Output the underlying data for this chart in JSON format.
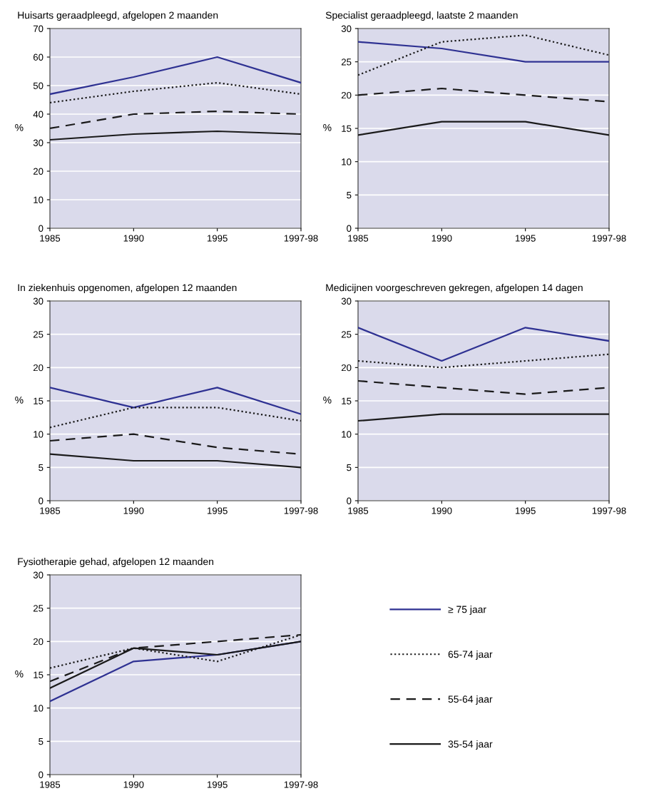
{
  "chart_data": [
    {
      "type": "line",
      "title": "Huisarts geraadpleegd, afgelopen 2 maanden",
      "ylabel": "%",
      "categories": [
        "1985",
        "1990",
        "1995",
        "1997-98"
      ],
      "ylim": [
        0,
        70
      ],
      "yticks": [
        0,
        10,
        20,
        30,
        40,
        50,
        60,
        70
      ],
      "grid": "y",
      "legend": false,
      "series": [
        {
          "color": "#2e3192",
          "line_style": "solid",
          "values": [
            47,
            53,
            60,
            51
          ]
        },
        {
          "color": "#1a1a1a",
          "line_style": "dotted",
          "values": [
            44,
            48,
            51,
            47
          ]
        },
        {
          "color": "#1a1a1a",
          "line_style": "dashed",
          "values": [
            35,
            40,
            41,
            40
          ]
        },
        {
          "color": "#1a1a1a",
          "line_style": "solid",
          "values": [
            31,
            33,
            34,
            33
          ]
        }
      ]
    },
    {
      "type": "line",
      "title": "Specialist geraadpleegd, laatste 2 maanden",
      "ylabel": "%",
      "categories": [
        "1985",
        "1990",
        "1995",
        "1997-98"
      ],
      "ylim": [
        0,
        30
      ],
      "yticks": [
        0,
        5,
        10,
        15,
        20,
        25,
        30
      ],
      "grid": "y",
      "legend": false,
      "series": [
        {
          "color": "#2e3192",
          "line_style": "solid",
          "values": [
            28,
            27,
            25,
            25
          ]
        },
        {
          "color": "#1a1a1a",
          "line_style": "dotted",
          "values": [
            23,
            28,
            29,
            26
          ]
        },
        {
          "color": "#1a1a1a",
          "line_style": "dashed",
          "values": [
            20,
            21,
            20,
            19
          ]
        },
        {
          "color": "#1a1a1a",
          "line_style": "solid",
          "values": [
            14,
            16,
            16,
            14
          ]
        }
      ]
    },
    {
      "type": "line",
      "title": "In ziekenhuis opgenomen, afgelopen 12 maanden",
      "ylabel": "%",
      "categories": [
        "1985",
        "1990",
        "1995",
        "1997-98"
      ],
      "ylim": [
        0,
        30
      ],
      "yticks": [
        0,
        5,
        10,
        15,
        20,
        25,
        30
      ],
      "grid": "y",
      "legend": false,
      "series": [
        {
          "color": "#2e3192",
          "line_style": "solid",
          "values": [
            17,
            14,
            17,
            13
          ]
        },
        {
          "color": "#1a1a1a",
          "line_style": "dotted",
          "values": [
            11,
            14,
            14,
            12
          ]
        },
        {
          "color": "#1a1a1a",
          "line_style": "dashed",
          "values": [
            9,
            10,
            8,
            7
          ]
        },
        {
          "color": "#1a1a1a",
          "line_style": "solid",
          "values": [
            7,
            6,
            6,
            5
          ]
        }
      ]
    },
    {
      "type": "line",
      "title": "Medicijnen voorgeschreven gekregen, afgelopen 14 dagen",
      "ylabel": "%",
      "categories": [
        "1985",
        "1990",
        "1995",
        "1997-98"
      ],
      "ylim": [
        0,
        30
      ],
      "yticks": [
        0,
        5,
        10,
        15,
        20,
        25,
        30
      ],
      "grid": "y",
      "legend": false,
      "series": [
        {
          "color": "#2e3192",
          "line_style": "solid",
          "values": [
            26,
            21,
            26,
            24
          ]
        },
        {
          "color": "#1a1a1a",
          "line_style": "dotted",
          "values": [
            21,
            20,
            21,
            22
          ]
        },
        {
          "color": "#1a1a1a",
          "line_style": "dashed",
          "values": [
            18,
            17,
            16,
            17
          ]
        },
        {
          "color": "#1a1a1a",
          "line_style": "solid",
          "values": [
            12,
            13,
            13,
            13
          ]
        }
      ]
    },
    {
      "type": "line",
      "title": "Fysiotherapie gehad, afgelopen 12 maanden",
      "ylabel": "%",
      "categories": [
        "1985",
        "1990",
        "1995",
        "1997-98"
      ],
      "ylim": [
        0,
        30
      ],
      "yticks": [
        0,
        5,
        10,
        15,
        20,
        25,
        30
      ],
      "grid": "y",
      "legend": "right",
      "series": [
        {
          "name": "≥ 75 jaar",
          "color": "#2e3192",
          "line_style": "solid",
          "values": [
            11,
            17,
            18,
            20
          ]
        },
        {
          "name": "65-74 jaar",
          "color": "#1a1a1a",
          "line_style": "dotted",
          "values": [
            16,
            19,
            17,
            21
          ]
        },
        {
          "name": "55-64 jaar",
          "color": "#1a1a1a",
          "line_style": "dashed",
          "values": [
            14,
            19,
            20,
            21
          ]
        },
        {
          "name": "35-54 jaar",
          "color": "#1a1a1a",
          "line_style": "solid",
          "values": [
            13,
            19,
            18,
            20
          ]
        }
      ]
    }
  ]
}
